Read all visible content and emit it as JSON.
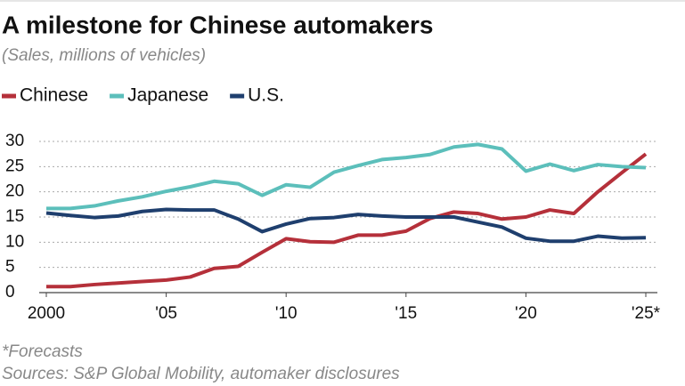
{
  "chart_data": {
    "type": "line",
    "title": "A milestone for Chinese automakers",
    "subtitle": "(Sales, millions of vehicles)",
    "footnote": "*Forecasts",
    "source": "Sources: S&P Global Mobility, automaker disclosures",
    "x": [
      2000,
      2001,
      2002,
      2003,
      2004,
      2005,
      2006,
      2007,
      2008,
      2009,
      2010,
      2011,
      2012,
      2013,
      2014,
      2015,
      2016,
      2017,
      2018,
      2019,
      2020,
      2021,
      2022,
      2023,
      2024,
      2025
    ],
    "series": [
      {
        "name": "Chinese",
        "color": "#b5303a",
        "values": [
          1.2,
          1.2,
          1.6,
          1.9,
          2.2,
          2.5,
          3.1,
          4.8,
          5.2,
          8.0,
          10.7,
          10.1,
          10.0,
          11.4,
          11.4,
          12.2,
          14.7,
          16.0,
          15.7,
          14.6,
          15.0,
          16.4,
          15.7,
          20.0,
          23.8,
          27.5
        ]
      },
      {
        "name": "Japanese",
        "color": "#5cbfbb",
        "values": [
          16.7,
          16.7,
          17.2,
          18.2,
          19.0,
          20.1,
          21.0,
          22.1,
          21.6,
          19.3,
          21.4,
          20.9,
          23.9,
          25.2,
          26.4,
          26.8,
          27.4,
          28.9,
          29.4,
          28.5,
          24.1,
          25.5,
          24.2,
          25.4,
          25.0,
          24.8
        ]
      },
      {
        "name": "U.S.",
        "color": "#1f3f6e",
        "values": [
          15.8,
          15.3,
          14.9,
          15.2,
          16.1,
          16.5,
          16.4,
          16.4,
          14.6,
          12.1,
          13.6,
          14.7,
          14.9,
          15.5,
          15.2,
          15.0,
          15.0,
          15.0,
          14.0,
          13.0,
          10.8,
          10.2,
          10.2,
          11.2,
          10.8,
          10.9
        ]
      }
    ],
    "xlim": [
      2000,
      2025
    ],
    "xticks": [
      2000,
      {
        "value": 2005,
        "label": "'05"
      },
      {
        "value": 2010,
        "label": "'10"
      },
      {
        "value": 2015,
        "label": "'15"
      },
      {
        "value": 2020,
        "label": "'20"
      },
      {
        "value": 2025,
        "label": "'25*"
      }
    ],
    "ylim": [
      0,
      30
    ],
    "yticks": [
      0,
      5,
      10,
      15,
      20,
      25,
      30
    ],
    "grid": true,
    "legend": "top"
  }
}
